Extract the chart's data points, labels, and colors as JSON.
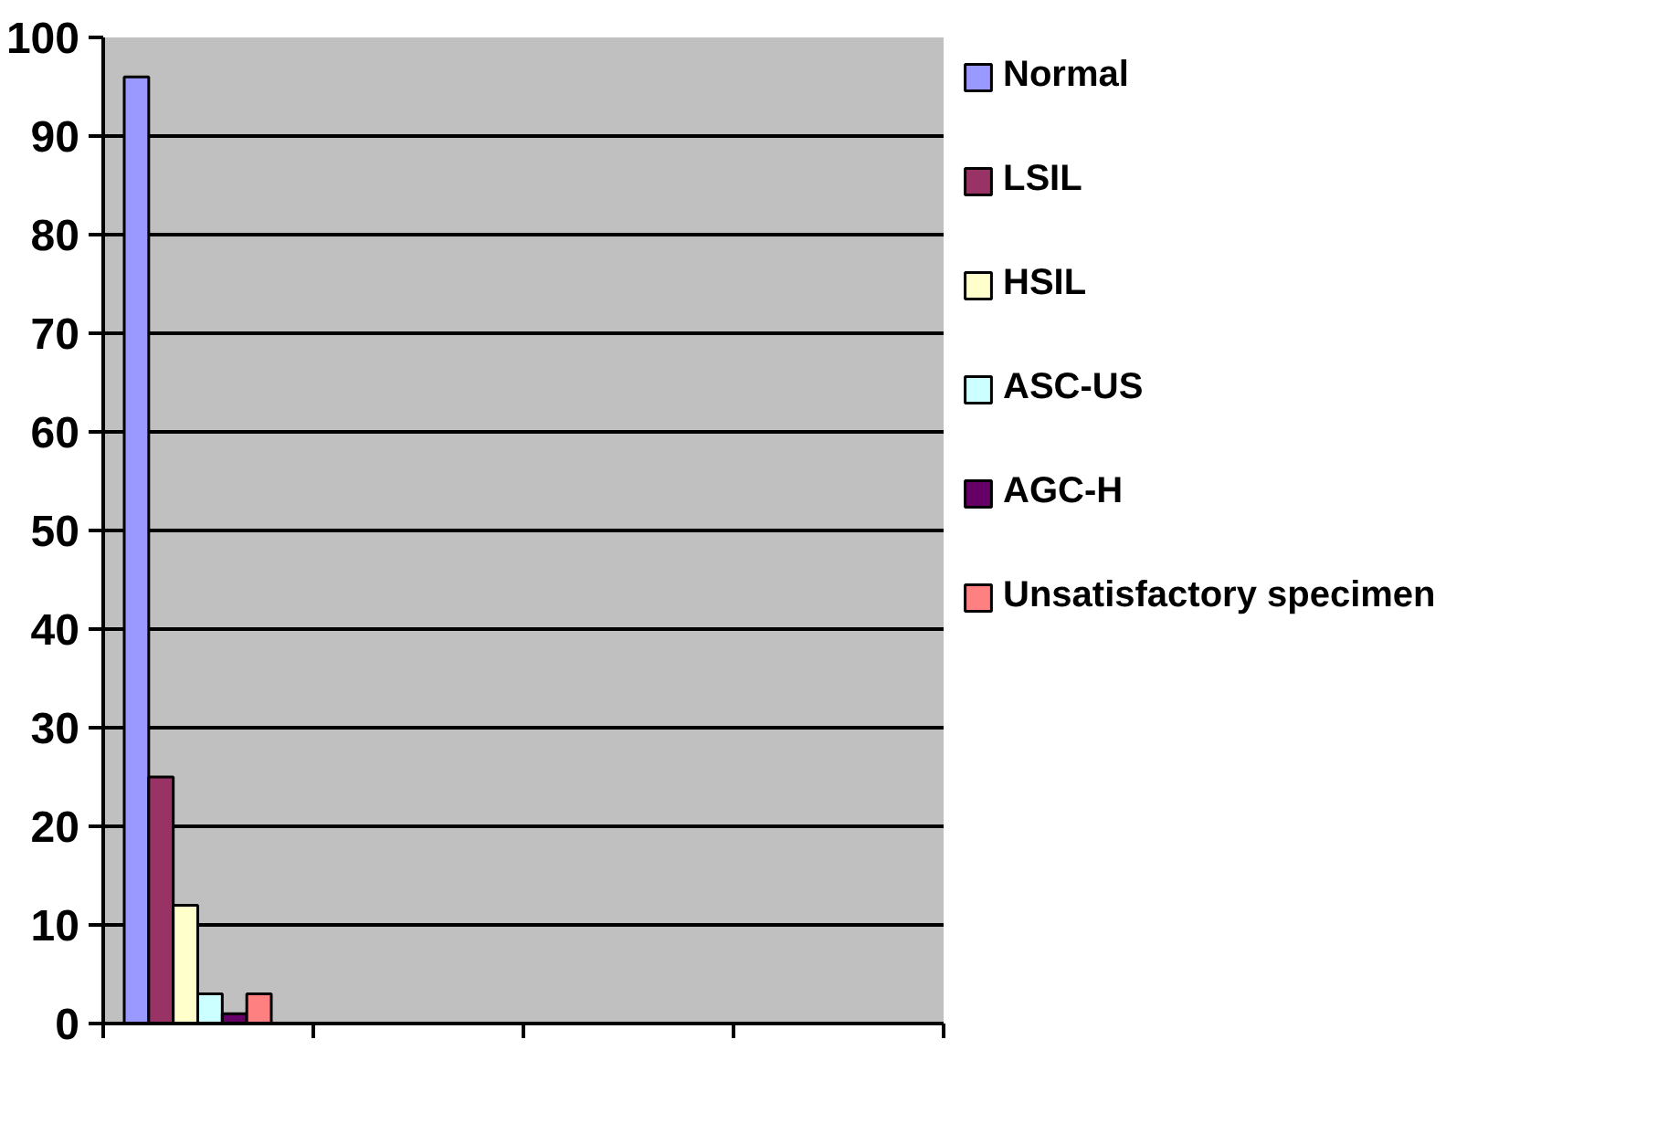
{
  "chart_data": {
    "type": "bar",
    "categories": [
      null,
      null,
      null,
      null
    ],
    "series": [
      {
        "name": "Normal",
        "color": "#9999ff",
        "values": [
          96,
          0,
          0,
          0
        ]
      },
      {
        "name": "LSIL",
        "color": "#993366",
        "values": [
          25,
          0,
          0,
          0
        ]
      },
      {
        "name": "HSIL",
        "color": "#ffffcc",
        "values": [
          12,
          0,
          0,
          0
        ]
      },
      {
        "name": "ASC-US",
        "color": "#ccffff",
        "values": [
          3,
          0,
          0,
          0
        ]
      },
      {
        "name": "AGC-H",
        "color": "#660066",
        "values": [
          1,
          0,
          0,
          0
        ]
      },
      {
        "name": "Unsatisfactory specimen",
        "color": "#ff8080",
        "values": [
          3,
          0,
          0,
          0
        ]
      }
    ],
    "ylim": [
      0,
      100
    ],
    "yticks": [
      0,
      10,
      20,
      30,
      40,
      50,
      60,
      70,
      80,
      90,
      100
    ],
    "grid": "y",
    "legend": "right"
  }
}
